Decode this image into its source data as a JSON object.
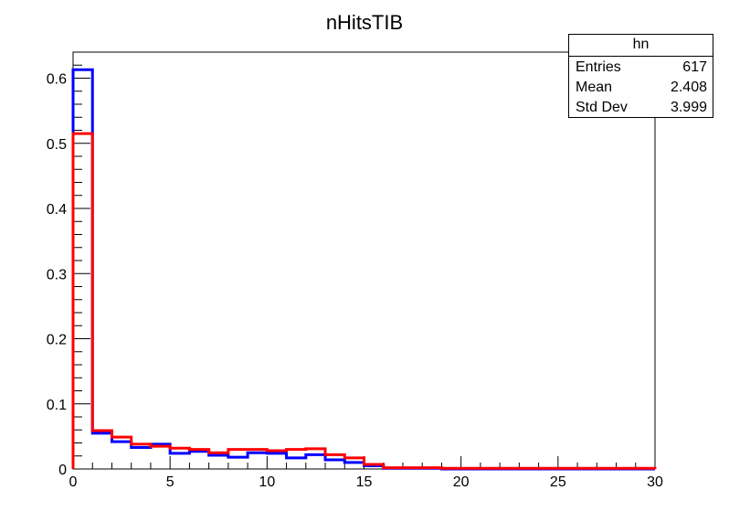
{
  "chart_data": {
    "type": "histogram",
    "title": "nHitsTIB",
    "xlabel": "",
    "ylabel": "",
    "xlim": [
      0,
      30
    ],
    "ylim": [
      0,
      0.64
    ],
    "x_ticks": [
      0,
      5,
      10,
      15,
      20,
      25,
      30
    ],
    "y_ticks": [
      0,
      0.1,
      0.2,
      0.3,
      0.4,
      0.5,
      0.6
    ],
    "bin_edges": [
      0,
      1,
      2,
      3,
      4,
      5,
      6,
      7,
      8,
      9,
      10,
      11,
      12,
      13,
      14,
      15,
      16,
      17,
      18,
      19,
      20,
      21,
      22,
      23,
      24,
      25,
      26,
      27,
      28,
      29,
      30
    ],
    "series": [
      {
        "color": "#0000ff",
        "values": [
          0.613,
          0.055,
          0.042,
          0.033,
          0.038,
          0.024,
          0.027,
          0.021,
          0.018,
          0.025,
          0.024,
          0.017,
          0.022,
          0.014,
          0.01,
          0.005,
          0.001,
          0.001,
          0.001,
          0.0,
          0.0,
          0.0,
          0.0,
          0.0,
          0.0,
          0.0,
          0.0,
          0.0,
          0.0,
          0.0
        ]
      },
      {
        "color": "#ff0000",
        "values": [
          0.515,
          0.059,
          0.049,
          0.038,
          0.035,
          0.032,
          0.03,
          0.025,
          0.03,
          0.03,
          0.028,
          0.03,
          0.031,
          0.022,
          0.017,
          0.007,
          0.002,
          0.002,
          0.002,
          0.001,
          0.001,
          0.001,
          0.001,
          0.001,
          0.001,
          0.001,
          0.001,
          0.001,
          0.001,
          0.001
        ]
      }
    ],
    "stats": {
      "title": "hn",
      "rows": [
        {
          "label": "Entries",
          "value": "617"
        },
        {
          "label": "Mean",
          "value": "2.408"
        },
        {
          "label": "Std Dev",
          "value": "3.999"
        }
      ]
    },
    "legend_position": "top-right",
    "grid": false
  }
}
